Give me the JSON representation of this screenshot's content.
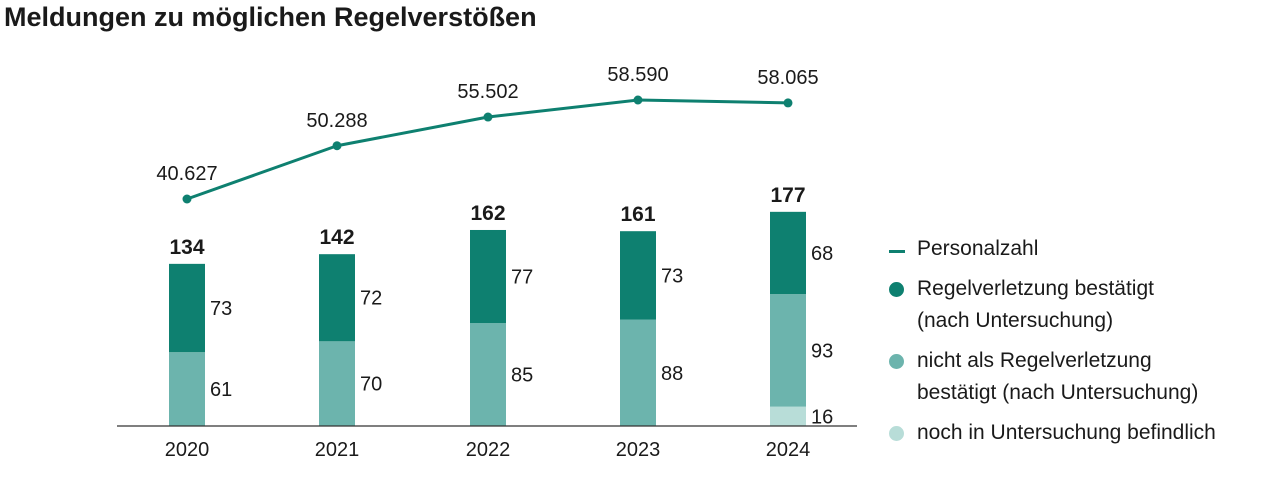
{
  "title": "Meldungen zu möglichen Regelverstößen",
  "colors": {
    "line": "#0e8070",
    "confirmed": "#0e8070",
    "not_confirmed": "#6cb4ad",
    "pending": "#b8ddd8",
    "axis": "#333333"
  },
  "legend": [
    {
      "label": "Personalzahl",
      "symbol": "line",
      "color": "#0e8070"
    },
    {
      "label": "Regelverletzung bestätigt\n(nach Untersuchung)",
      "symbol": "dot",
      "color": "#0e8070"
    },
    {
      "label": "nicht als Regelverletzung\nbestätigt (nach Untersuchung)",
      "symbol": "dot",
      "color": "#6cb4ad"
    },
    {
      "label": "noch in Untersuchung befindlich",
      "symbol": "dot",
      "color": "#b8ddd8"
    }
  ],
  "chart_data": {
    "type": "bar",
    "title": "Meldungen zu möglichen Regelverstößen",
    "categories": [
      "2020",
      "2021",
      "2022",
      "2023",
      "2024"
    ],
    "stacked": true,
    "series": [
      {
        "name": "noch in Untersuchung befindlich",
        "values": [
          0,
          0,
          0,
          0,
          16
        ],
        "labels": [
          "",
          "",
          "",
          "",
          "16"
        ],
        "color": "#b8ddd8"
      },
      {
        "name": "nicht als Regelverletzung bestätigt (nach Untersuchung)",
        "values": [
          61,
          70,
          85,
          88,
          93
        ],
        "labels": [
          "61",
          "70",
          "85",
          "88",
          "93"
        ],
        "color": "#6cb4ad"
      },
      {
        "name": "Regelverletzung bestätigt (nach Untersuchung)",
        "values": [
          73,
          72,
          77,
          73,
          68
        ],
        "labels": [
          "73",
          "72",
          "77",
          "73",
          "68"
        ],
        "color": "#0e8070"
      }
    ],
    "totals": [
      134,
      142,
      162,
      161,
      177
    ],
    "total_labels": [
      "134",
      "142",
      "162",
      "161",
      "177"
    ],
    "line_series": {
      "name": "Personalzahl",
      "values": [
        40627,
        50288,
        55502,
        58590,
        58065
      ],
      "labels": [
        "40.627",
        "50.288",
        "55.502",
        "58.590",
        "58.065"
      ],
      "color": "#0e8070"
    },
    "bar_ylim": [
      0,
      200
    ],
    "line_ylim": [
      30000,
      60000
    ],
    "xlabel": "",
    "ylabel": "",
    "grid": false,
    "legend_position": "right"
  }
}
